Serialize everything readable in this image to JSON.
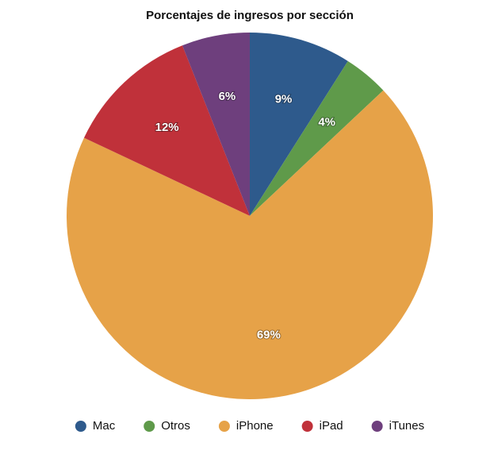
{
  "chart_data": {
    "type": "pie",
    "title": "Porcentajes de ingresos por sección",
    "categories": [
      "Mac",
      "Otros",
      "iPhone",
      "iPad",
      "iTunes"
    ],
    "values": [
      9,
      4,
      69,
      12,
      6
    ],
    "value_labels": [
      "9%",
      "4%",
      "69%",
      "12%",
      "6%"
    ],
    "colors": [
      "#2e5a8c",
      "#5f9a4a",
      "#e6a248",
      "#c0313a",
      "#6e3f7d"
    ],
    "legend": "bottom"
  }
}
